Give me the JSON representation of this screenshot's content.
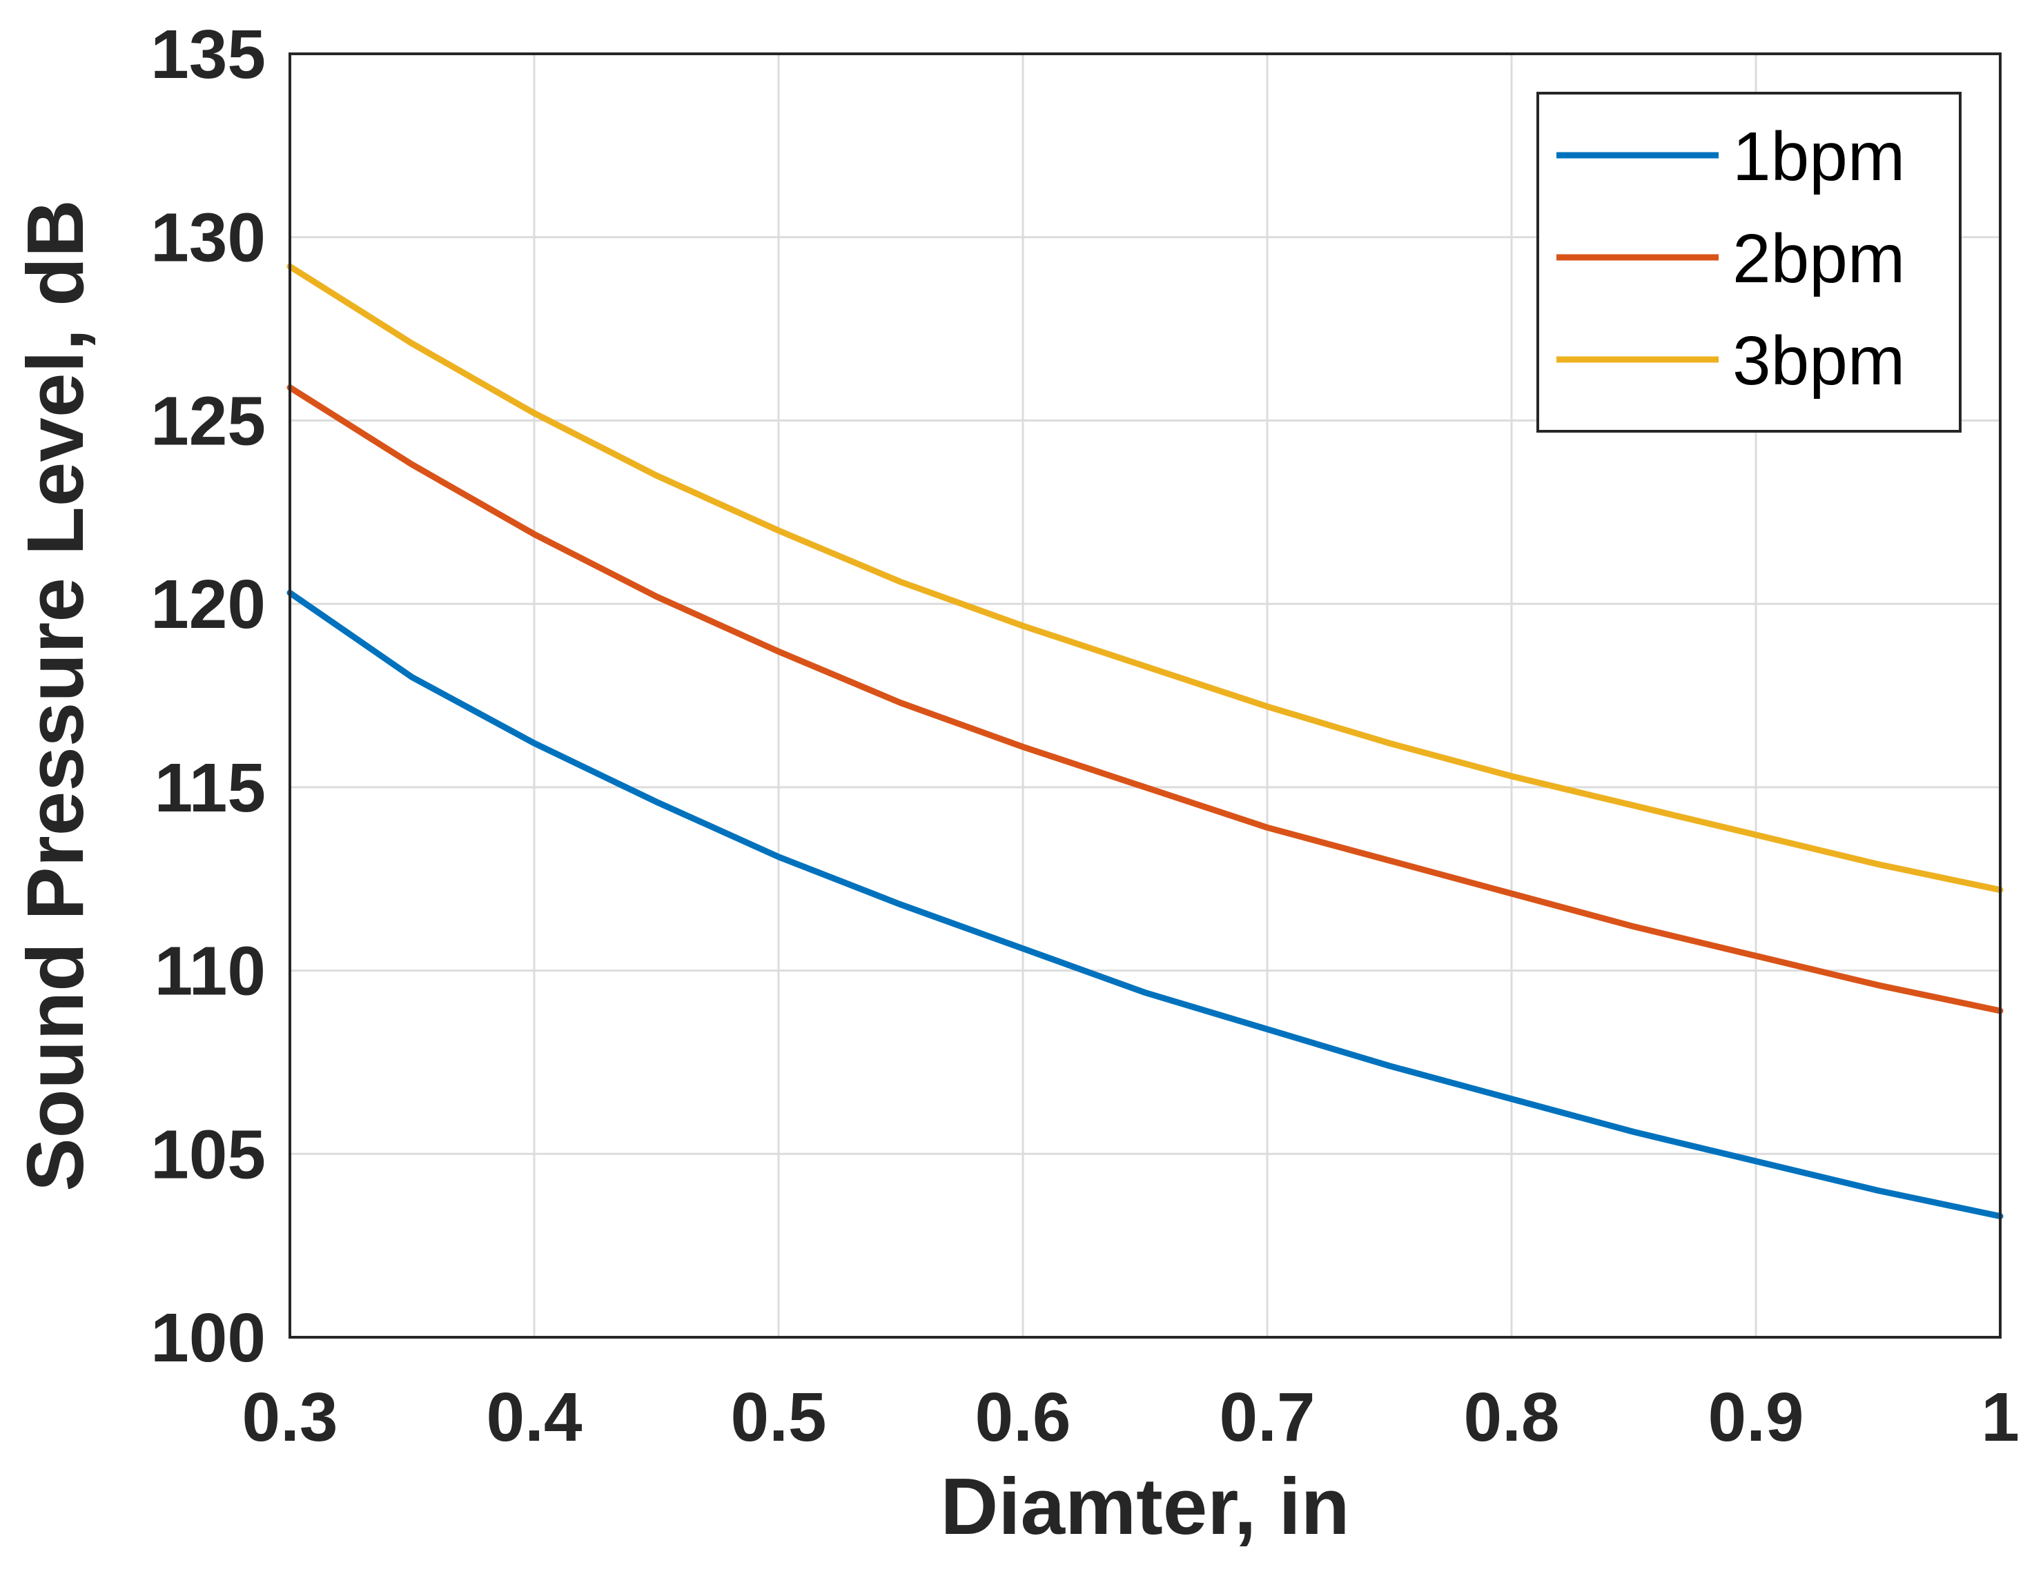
{
  "chart_data": {
    "type": "line",
    "xlabel": "Diamter, in",
    "ylabel": "Sound Pressure Level, dB",
    "xlim": [
      0.3,
      1.0
    ],
    "ylim": [
      100,
      135
    ],
    "xticks": [
      0.3,
      0.4,
      0.5,
      0.6,
      0.7,
      0.8,
      0.9,
      1.0
    ],
    "xtick_labels": [
      "0.3",
      "0.4",
      "0.5",
      "0.6",
      "0.7",
      "0.8",
      "0.9",
      "1"
    ],
    "yticks": [
      100,
      105,
      110,
      115,
      120,
      125,
      130,
      135
    ],
    "ytick_labels": [
      "100",
      "105",
      "110",
      "115",
      "120",
      "125",
      "130",
      "135"
    ],
    "grid": true,
    "legend_position": "top-right",
    "x": [
      0.3,
      0.35,
      0.4,
      0.45,
      0.5,
      0.55,
      0.6,
      0.65,
      0.7,
      0.75,
      0.8,
      0.85,
      0.9,
      0.95,
      1.0
    ],
    "series": [
      {
        "name": "1bpm",
        "color": "#0072BD",
        "values": [
          120.3,
          118.0,
          116.2,
          114.6,
          113.1,
          111.8,
          110.6,
          109.4,
          108.4,
          107.4,
          106.5,
          105.6,
          104.8,
          104.0,
          103.3
        ]
      },
      {
        "name": "2bpm",
        "color": "#D95319",
        "values": [
          125.9,
          123.8,
          121.9,
          120.2,
          118.7,
          117.3,
          116.1,
          115.0,
          113.9,
          113.0,
          112.1,
          111.2,
          110.4,
          109.6,
          108.9
        ]
      },
      {
        "name": "3bpm",
        "color": "#EDB120",
        "values": [
          129.2,
          127.1,
          125.2,
          123.5,
          122.0,
          120.6,
          119.4,
          118.3,
          117.2,
          116.2,
          115.3,
          114.5,
          113.7,
          112.9,
          112.2
        ]
      }
    ]
  }
}
